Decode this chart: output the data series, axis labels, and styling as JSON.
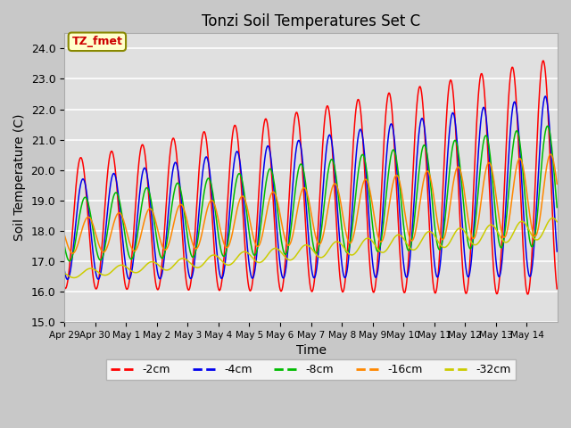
{
  "title": "Tonzi Soil Temperatures Set C",
  "xlabel": "Time",
  "ylabel": "Soil Temperature (C)",
  "ylim": [
    15.0,
    24.5
  ],
  "yticks": [
    15.0,
    16.0,
    17.0,
    18.0,
    19.0,
    20.0,
    21.0,
    22.0,
    23.0,
    24.0
  ],
  "fig_bg_color": "#c8c8c8",
  "plot_bg_color": "#e0e0e0",
  "line_colors": {
    "-2cm": "#ff0000",
    "-4cm": "#0000ee",
    "-8cm": "#00bb00",
    "-16cm": "#ff8800",
    "-32cm": "#cccc00"
  },
  "legend_label": "TZ_fmet",
  "legend_bg": "#ffffcc",
  "legend_border": "#888800",
  "n_days": 16,
  "xtick_labels": [
    "Apr 29",
    "Apr 30",
    "May 1",
    "May 2",
    "May 3",
    "May 4",
    "May 5",
    "May 6",
    "May 7",
    "May 8",
    "May 9",
    "May 10",
    "May 11",
    "May 12",
    "May 13",
    "May 14"
  ]
}
